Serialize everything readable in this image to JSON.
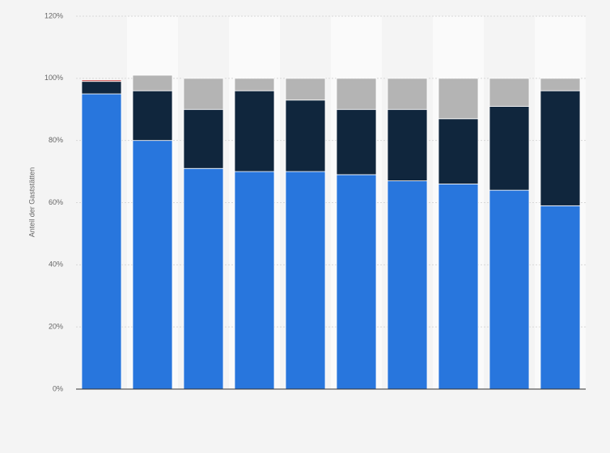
{
  "chart_data": {
    "type": "bar",
    "stacked": true,
    "y_label": "Anteil der Gaststätten",
    "categories": [
      null,
      null,
      null,
      null,
      null,
      null,
      null,
      null,
      null,
      null
    ],
    "series": [
      {
        "color": "#2876dd",
        "values": [
          95,
          80,
          71,
          70,
          70,
          69,
          67,
          66,
          64,
          59
        ]
      },
      {
        "color": "#10263d",
        "values": [
          4,
          16,
          19,
          26,
          23,
          21,
          23,
          21,
          27,
          37
        ]
      },
      {
        "color": "#b4b4b4",
        "values": [
          0,
          5,
          10,
          4,
          7,
          10,
          10,
          13,
          9,
          4
        ]
      },
      {
        "color": "#c8504f",
        "values": [
          0.5,
          0,
          0,
          0,
          0,
          0,
          0,
          0,
          0,
          0
        ]
      }
    ],
    "ylim": [
      0,
      120
    ],
    "yticks": [
      {
        "value": 0,
        "label": "0%"
      },
      {
        "value": 20,
        "label": "20%"
      },
      {
        "value": 40,
        "label": "40%"
      },
      {
        "value": 60,
        "label": "60%"
      },
      {
        "value": 80,
        "label": "80%"
      },
      {
        "value": 100,
        "label": "100%"
      },
      {
        "value": 120,
        "label": "120%"
      }
    ],
    "grid": true
  }
}
